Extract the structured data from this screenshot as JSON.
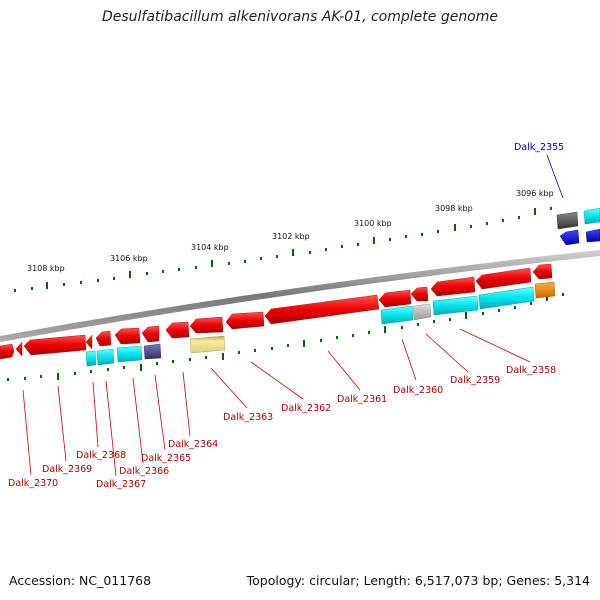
{
  "title": "Desulfatibacillum alkenivorans AK-01, complete genome",
  "footer": {
    "accession": "Accession: NC_011768",
    "topology": "Topology: circular; Length: 6,517,073 bp; Genes: 5,314"
  },
  "colors": {
    "forward_gene": "#e00000",
    "cds_cyan": "#00e5ee",
    "cds_gray": "#bbbbbb",
    "cds_dark": "#555555",
    "cds_navy": "#4a4a8a",
    "cds_yellow": "#eedd88",
    "cds_orange": "#ff8800",
    "cds_blue": "#0000ee",
    "backbone": "#888888",
    "tick": "#006600",
    "label_red": "#cc0000",
    "label_blue": "#0000cc"
  },
  "ruler": {
    "tick_labels": [
      "3108 kbp",
      "3106 kbp",
      "3104 kbp",
      "3102 kbp",
      "3100 kbp",
      "3098 kbp",
      "3096 kbp"
    ]
  },
  "genes": {
    "labels": [
      "Dalk_2355",
      "Dalk_2358",
      "Dalk_2359",
      "Dalk_2360",
      "Dalk_2361",
      "Dalk_2362",
      "Dalk_2363",
      "Dalk_2364",
      "Dalk_2365",
      "Dalk_2366",
      "Dalk_2367",
      "Dalk_2368",
      "Dalk_2369",
      "Dalk_2370"
    ]
  }
}
